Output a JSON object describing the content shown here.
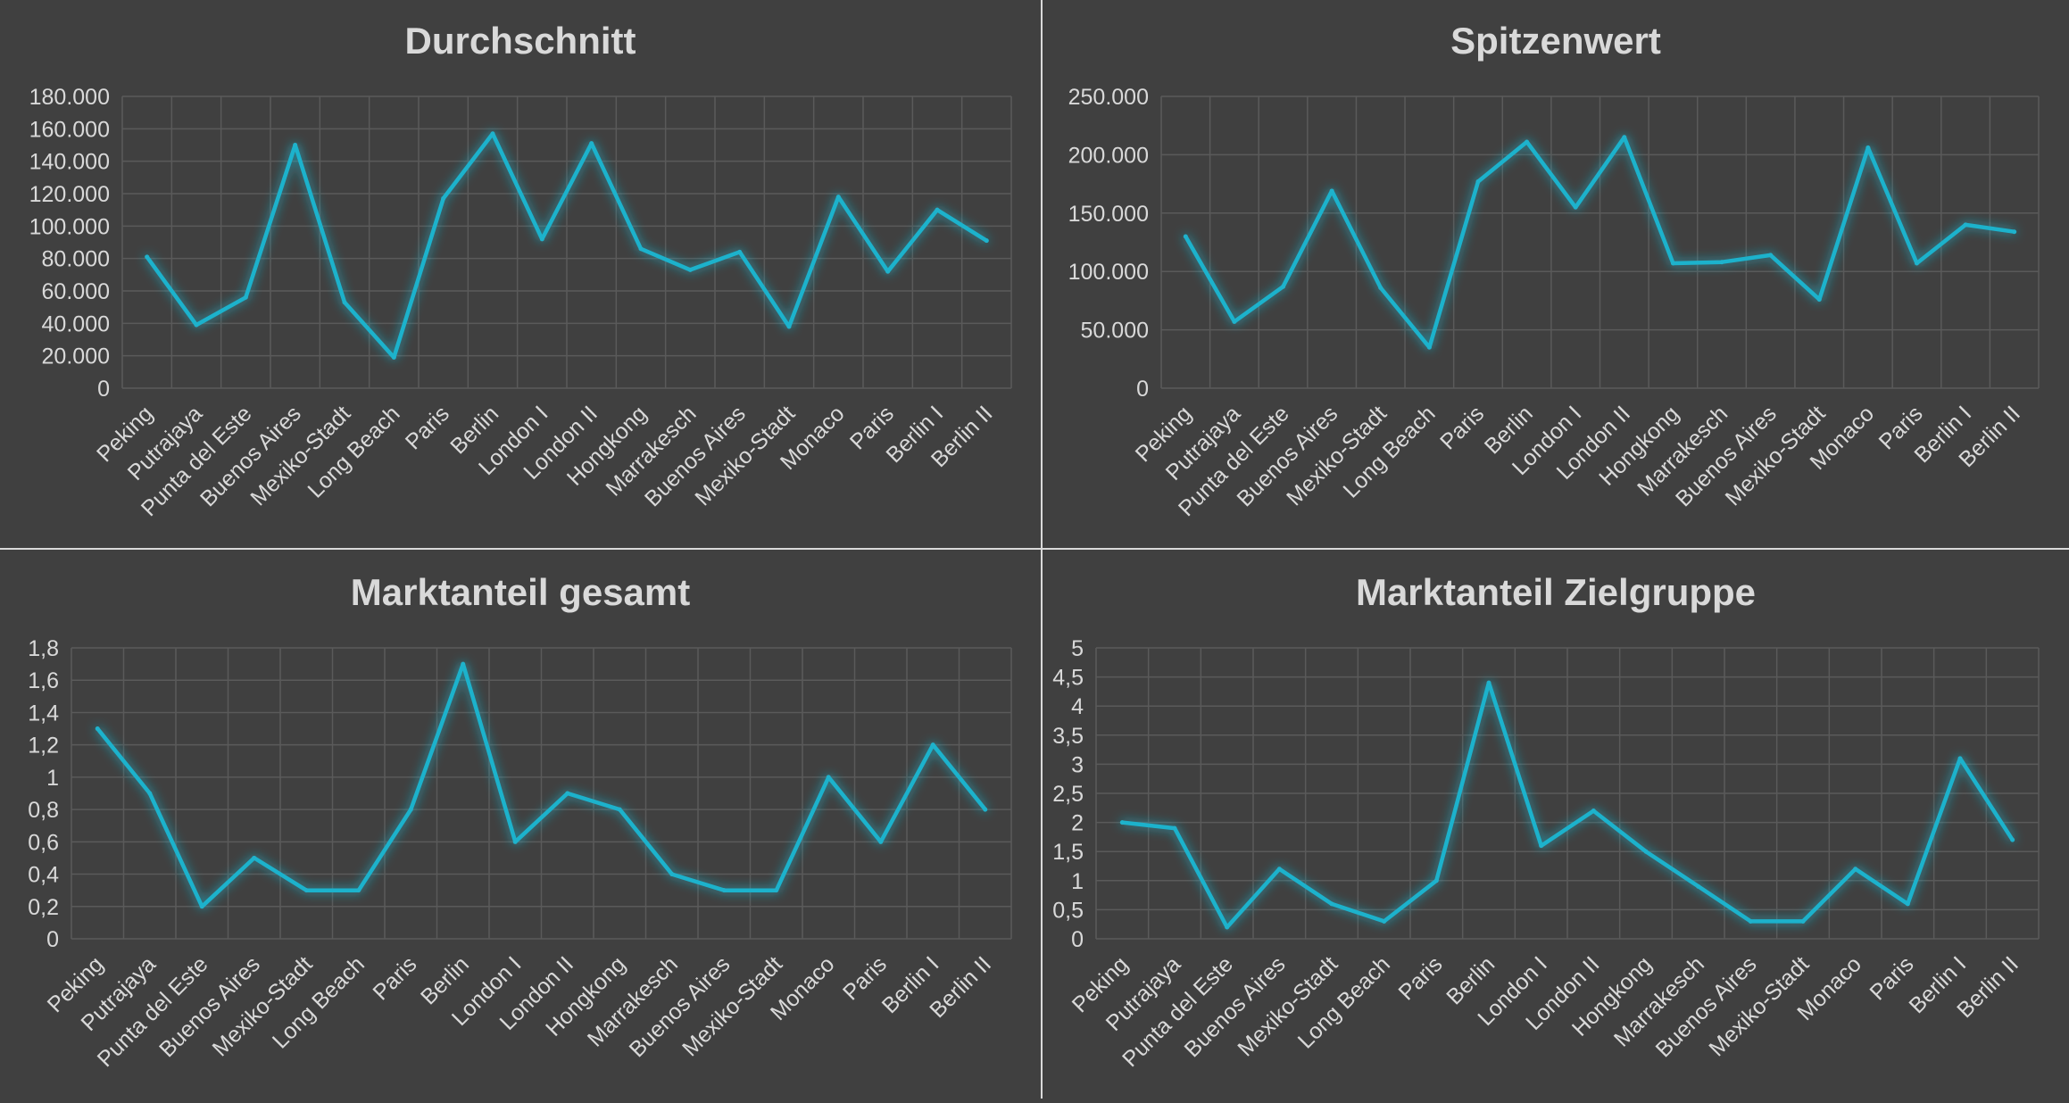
{
  "colors": {
    "background": "#404040",
    "line": "#1fb2cc",
    "grid": "#5a5a5a",
    "text": "#d9d9d9"
  },
  "chart_data": [
    {
      "type": "line",
      "title": "Durchschnitt",
      "categories": [
        "Peking",
        "Putrajaya",
        "Punta del Este",
        "Buenos Aires",
        "Mexiko-Stadt",
        "Long Beach",
        "Paris",
        "Berlin",
        "London I",
        "London II",
        "Hongkong",
        "Marrakesch",
        "Buenos Aires",
        "Mexiko-Stadt",
        "Monaco",
        "Paris",
        "Berlin I",
        "Berlin II"
      ],
      "series": [
        {
          "values": [
            81000,
            39000,
            56000,
            150000,
            53000,
            19000,
            117000,
            157000,
            92000,
            151000,
            86000,
            73000,
            84000,
            38000,
            118000,
            72000,
            110000,
            91000
          ]
        }
      ],
      "ylim": [
        0,
        180000
      ],
      "yticks": [
        0,
        20000,
        40000,
        60000,
        80000,
        100000,
        120000,
        140000,
        160000,
        180000
      ],
      "ytick_labels": [
        "0",
        "20.000",
        "40.000",
        "60.000",
        "80.000",
        "100.000",
        "120.000",
        "140.000",
        "160.000",
        "180.000"
      ],
      "grid": true
    },
    {
      "type": "line",
      "title": "Spitzenwert",
      "categories": [
        "Peking",
        "Putrajaya",
        "Punta del Este",
        "Buenos Aires",
        "Mexiko-Stadt",
        "Long Beach",
        "Paris",
        "Berlin",
        "London I",
        "London II",
        "Hongkong",
        "Marrakesch",
        "Buenos Aires",
        "Mexiko-Stadt",
        "Monaco",
        "Paris",
        "Berlin I",
        "Berlin II"
      ],
      "series": [
        {
          "values": [
            130000,
            57000,
            87000,
            169000,
            86000,
            35000,
            177000,
            211000,
            155000,
            215000,
            107000,
            108000,
            114000,
            76000,
            206000,
            107000,
            140000,
            134000
          ]
        }
      ],
      "ylim": [
        0,
        250000
      ],
      "yticks": [
        0,
        50000,
        100000,
        150000,
        200000,
        250000
      ],
      "ytick_labels": [
        "0",
        "50.000",
        "100.000",
        "150.000",
        "200.000",
        "250.000"
      ],
      "grid": true
    },
    {
      "type": "line",
      "title": "Marktanteil gesamt",
      "categories": [
        "Peking",
        "Putrajaya",
        "Punta del Este",
        "Buenos Aires",
        "Mexiko-Stadt",
        "Long Beach",
        "Paris",
        "Berlin",
        "London I",
        "London II",
        "Hongkong",
        "Marrakesch",
        "Buenos Aires",
        "Mexiko-Stadt",
        "Monaco",
        "Paris",
        "Berlin I",
        "Berlin II"
      ],
      "series": [
        {
          "values": [
            1.3,
            0.9,
            0.2,
            0.5,
            0.3,
            0.3,
            0.8,
            1.7,
            0.6,
            0.9,
            0.8,
            0.4,
            0.3,
            0.3,
            1.0,
            0.6,
            1.2,
            0.8
          ]
        }
      ],
      "ylim": [
        0,
        1.8
      ],
      "yticks": [
        0,
        0.2,
        0.4,
        0.6,
        0.8,
        1,
        1.2,
        1.4,
        1.6,
        1.8
      ],
      "ytick_labels": [
        "0",
        "0,2",
        "0,4",
        "0,6",
        "0,8",
        "1",
        "1,2",
        "1,4",
        "1,6",
        "1,8"
      ],
      "grid": true
    },
    {
      "type": "line",
      "title": "Marktanteil Zielgruppe",
      "categories": [
        "Peking",
        "Putrajaya",
        "Punta del Este",
        "Buenos Aires",
        "Mexiko-Stadt",
        "Long Beach",
        "Paris",
        "Berlin",
        "London I",
        "London II",
        "Hongkong",
        "Marrakesch",
        "Buenos Aires",
        "Mexiko-Stadt",
        "Monaco",
        "Paris",
        "Berlin I",
        "Berlin II"
      ],
      "series": [
        {
          "values": [
            2.0,
            1.9,
            0.2,
            1.2,
            0.6,
            0.3,
            1.0,
            4.4,
            1.6,
            2.2,
            1.5,
            0.9,
            0.3,
            0.3,
            1.2,
            0.6,
            3.1,
            1.7
          ]
        }
      ],
      "ylim": [
        0,
        5
      ],
      "yticks": [
        0,
        0.5,
        1,
        1.5,
        2,
        2.5,
        3,
        3.5,
        4,
        4.5,
        5
      ],
      "ytick_labels": [
        "0",
        "0,5",
        "1",
        "1,5",
        "2",
        "2,5",
        "3",
        "3,5",
        "4",
        "4,5",
        "5"
      ],
      "grid": true
    }
  ]
}
